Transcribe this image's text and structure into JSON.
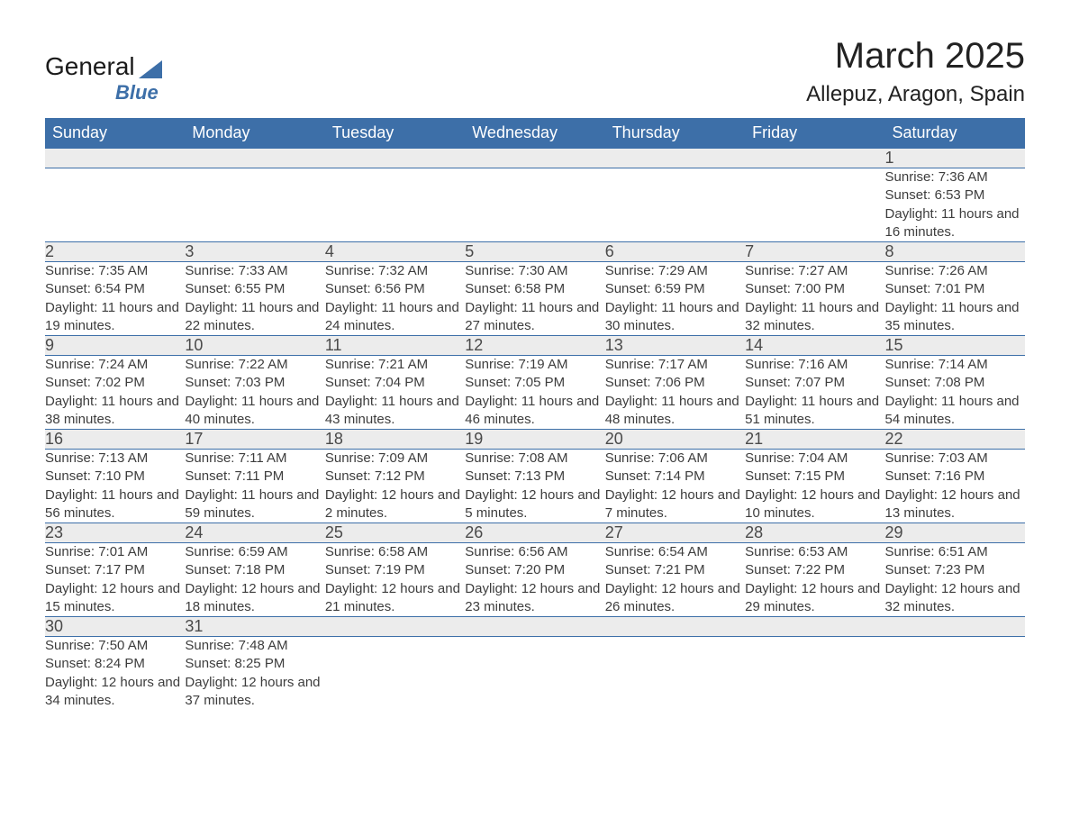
{
  "logo": {
    "word1": "General",
    "word2": "Blue",
    "triangle_color": "#3d6fa8"
  },
  "title": "March 2025",
  "location": "Allepuz, Aragon, Spain",
  "colors": {
    "header_bg": "#3d6fa8",
    "header_fg": "#ffffff",
    "daynum_bg": "#ececec",
    "row_border": "#3d6fa8",
    "text": "#3d3d3d"
  },
  "typography": {
    "title_fontsize": 40,
    "location_fontsize": 24,
    "header_fontsize": 18,
    "daynum_fontsize": 18,
    "body_fontsize": 15
  },
  "columns": [
    "Sunday",
    "Monday",
    "Tuesday",
    "Wednesday",
    "Thursday",
    "Friday",
    "Saturday"
  ],
  "labels": {
    "sunrise": "Sunrise:",
    "sunset": "Sunset:",
    "daylight": "Daylight:"
  },
  "weeks": [
    [
      null,
      null,
      null,
      null,
      null,
      null,
      {
        "d": "1",
        "sunrise": "7:36 AM",
        "sunset": "6:53 PM",
        "daylight": "11 hours and 16 minutes."
      }
    ],
    [
      {
        "d": "2",
        "sunrise": "7:35 AM",
        "sunset": "6:54 PM",
        "daylight": "11 hours and 19 minutes."
      },
      {
        "d": "3",
        "sunrise": "7:33 AM",
        "sunset": "6:55 PM",
        "daylight": "11 hours and 22 minutes."
      },
      {
        "d": "4",
        "sunrise": "7:32 AM",
        "sunset": "6:56 PM",
        "daylight": "11 hours and 24 minutes."
      },
      {
        "d": "5",
        "sunrise": "7:30 AM",
        "sunset": "6:58 PM",
        "daylight": "11 hours and 27 minutes."
      },
      {
        "d": "6",
        "sunrise": "7:29 AM",
        "sunset": "6:59 PM",
        "daylight": "11 hours and 30 minutes."
      },
      {
        "d": "7",
        "sunrise": "7:27 AM",
        "sunset": "7:00 PM",
        "daylight": "11 hours and 32 minutes."
      },
      {
        "d": "8",
        "sunrise": "7:26 AM",
        "sunset": "7:01 PM",
        "daylight": "11 hours and 35 minutes."
      }
    ],
    [
      {
        "d": "9",
        "sunrise": "7:24 AM",
        "sunset": "7:02 PM",
        "daylight": "11 hours and 38 minutes."
      },
      {
        "d": "10",
        "sunrise": "7:22 AM",
        "sunset": "7:03 PM",
        "daylight": "11 hours and 40 minutes."
      },
      {
        "d": "11",
        "sunrise": "7:21 AM",
        "sunset": "7:04 PM",
        "daylight": "11 hours and 43 minutes."
      },
      {
        "d": "12",
        "sunrise": "7:19 AM",
        "sunset": "7:05 PM",
        "daylight": "11 hours and 46 minutes."
      },
      {
        "d": "13",
        "sunrise": "7:17 AM",
        "sunset": "7:06 PM",
        "daylight": "11 hours and 48 minutes."
      },
      {
        "d": "14",
        "sunrise": "7:16 AM",
        "sunset": "7:07 PM",
        "daylight": "11 hours and 51 minutes."
      },
      {
        "d": "15",
        "sunrise": "7:14 AM",
        "sunset": "7:08 PM",
        "daylight": "11 hours and 54 minutes."
      }
    ],
    [
      {
        "d": "16",
        "sunrise": "7:13 AM",
        "sunset": "7:10 PM",
        "daylight": "11 hours and 56 minutes."
      },
      {
        "d": "17",
        "sunrise": "7:11 AM",
        "sunset": "7:11 PM",
        "daylight": "11 hours and 59 minutes."
      },
      {
        "d": "18",
        "sunrise": "7:09 AM",
        "sunset": "7:12 PM",
        "daylight": "12 hours and 2 minutes."
      },
      {
        "d": "19",
        "sunrise": "7:08 AM",
        "sunset": "7:13 PM",
        "daylight": "12 hours and 5 minutes."
      },
      {
        "d": "20",
        "sunrise": "7:06 AM",
        "sunset": "7:14 PM",
        "daylight": "12 hours and 7 minutes."
      },
      {
        "d": "21",
        "sunrise": "7:04 AM",
        "sunset": "7:15 PM",
        "daylight": "12 hours and 10 minutes."
      },
      {
        "d": "22",
        "sunrise": "7:03 AM",
        "sunset": "7:16 PM",
        "daylight": "12 hours and 13 minutes."
      }
    ],
    [
      {
        "d": "23",
        "sunrise": "7:01 AM",
        "sunset": "7:17 PM",
        "daylight": "12 hours and 15 minutes."
      },
      {
        "d": "24",
        "sunrise": "6:59 AM",
        "sunset": "7:18 PM",
        "daylight": "12 hours and 18 minutes."
      },
      {
        "d": "25",
        "sunrise": "6:58 AM",
        "sunset": "7:19 PM",
        "daylight": "12 hours and 21 minutes."
      },
      {
        "d": "26",
        "sunrise": "6:56 AM",
        "sunset": "7:20 PM",
        "daylight": "12 hours and 23 minutes."
      },
      {
        "d": "27",
        "sunrise": "6:54 AM",
        "sunset": "7:21 PM",
        "daylight": "12 hours and 26 minutes."
      },
      {
        "d": "28",
        "sunrise": "6:53 AM",
        "sunset": "7:22 PM",
        "daylight": "12 hours and 29 minutes."
      },
      {
        "d": "29",
        "sunrise": "6:51 AM",
        "sunset": "7:23 PM",
        "daylight": "12 hours and 32 minutes."
      }
    ],
    [
      {
        "d": "30",
        "sunrise": "7:50 AM",
        "sunset": "8:24 PM",
        "daylight": "12 hours and 34 minutes."
      },
      {
        "d": "31",
        "sunrise": "7:48 AM",
        "sunset": "8:25 PM",
        "daylight": "12 hours and 37 minutes."
      },
      null,
      null,
      null,
      null,
      null
    ]
  ]
}
